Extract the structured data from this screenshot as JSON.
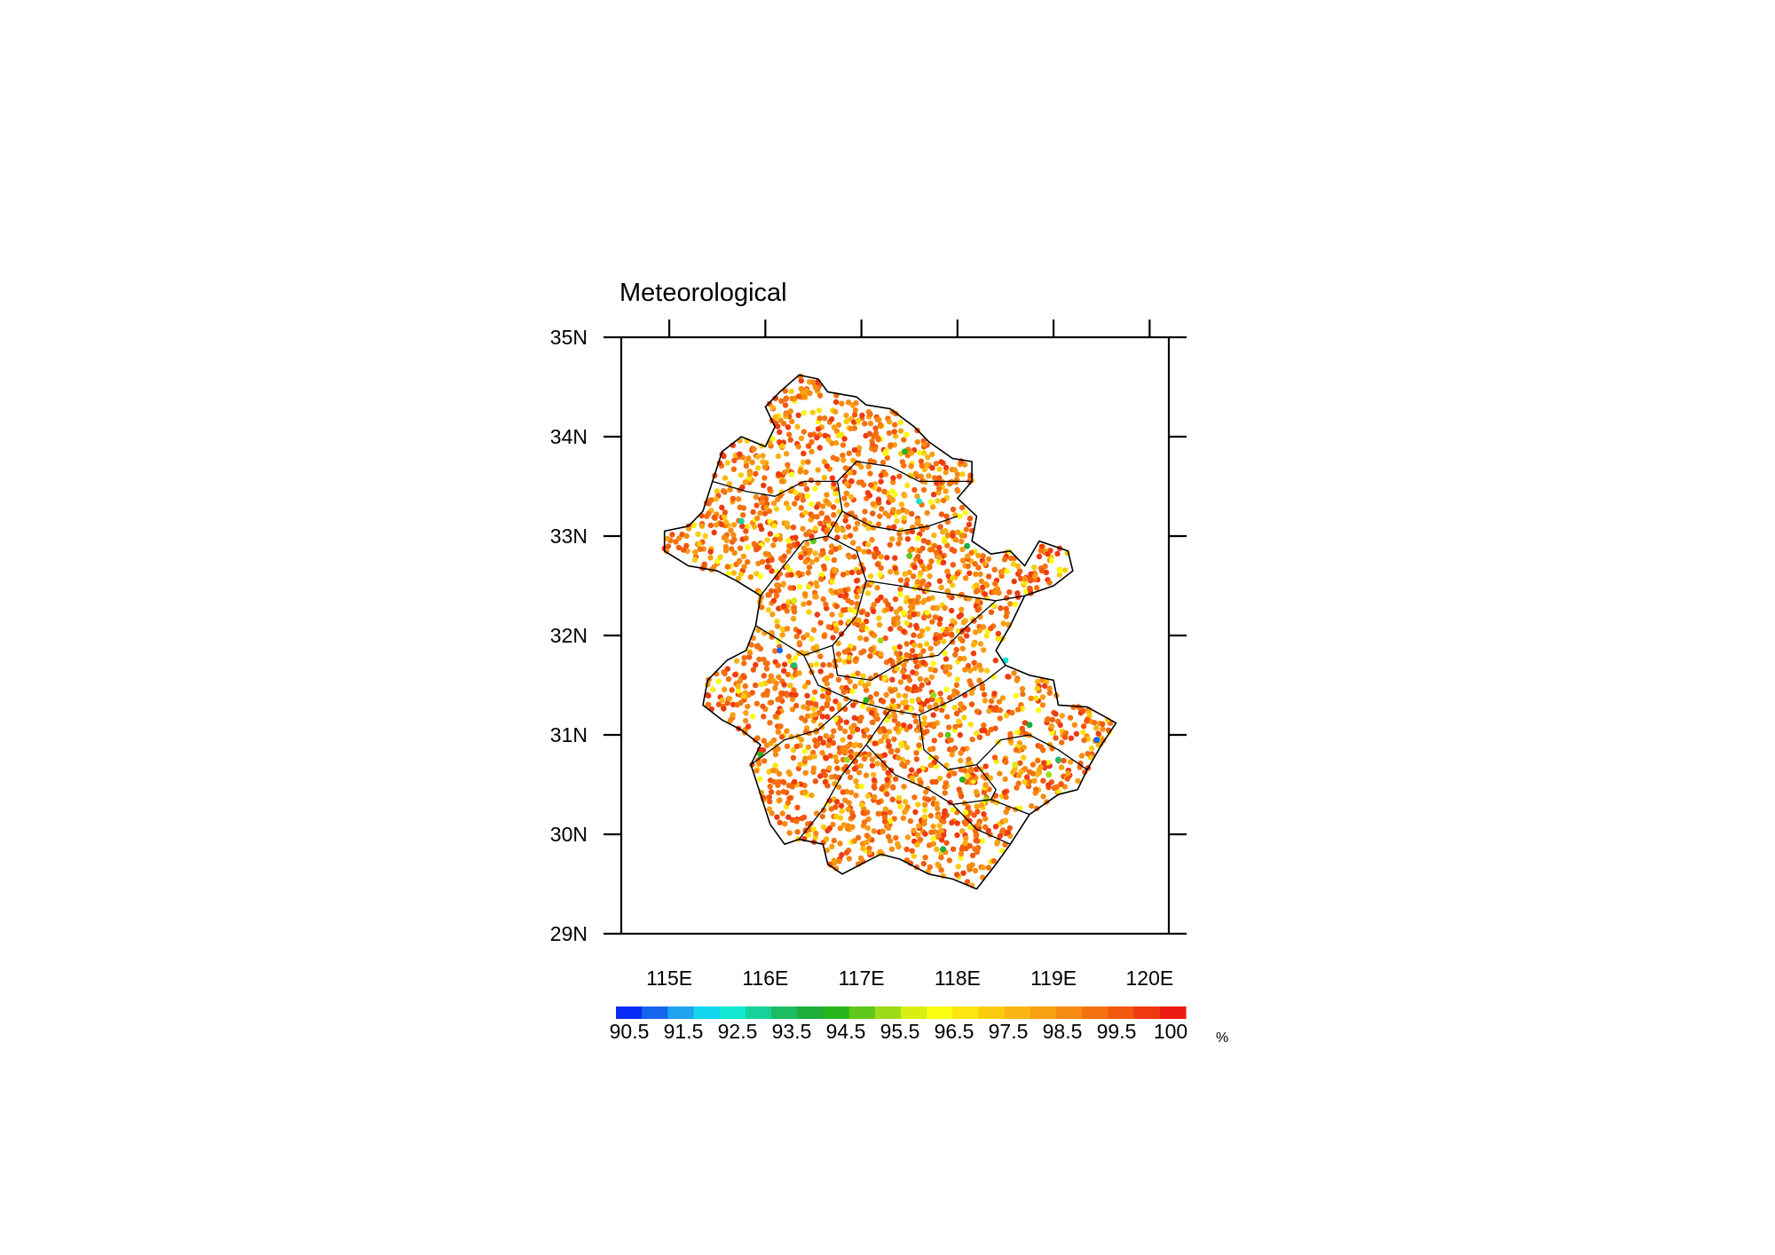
{
  "map": {
    "title": "Meteorological",
    "extent": {
      "lon": [
        114.5,
        120.2
      ],
      "lat": [
        29,
        35
      ]
    },
    "lon_ticks": [
      115,
      116,
      117,
      118,
      119,
      120
    ],
    "lon_labels": [
      "115E",
      "116E",
      "117E",
      "118E",
      "119E",
      "120E"
    ],
    "lat_ticks": [
      29,
      30,
      31,
      32,
      33,
      34,
      35
    ],
    "lat_labels": [
      "29N",
      "30N",
      "31N",
      "32N",
      "33N",
      "34N",
      "35N"
    ],
    "region_outline": [
      [
        116.15,
        34.45
      ],
      [
        116.35,
        34.62
      ],
      [
        116.55,
        34.58
      ],
      [
        116.65,
        34.45
      ],
      [
        116.95,
        34.4
      ],
      [
        117.05,
        34.32
      ],
      [
        117.3,
        34.28
      ],
      [
        117.55,
        34.1
      ],
      [
        117.7,
        33.95
      ],
      [
        117.95,
        33.78
      ],
      [
        118.15,
        33.75
      ],
      [
        118.15,
        33.55
      ],
      [
        118.0,
        33.38
      ],
      [
        118.2,
        33.2
      ],
      [
        118.15,
        32.95
      ],
      [
        118.35,
        32.82
      ],
      [
        118.55,
        32.85
      ],
      [
        118.7,
        32.7
      ],
      [
        118.85,
        32.95
      ],
      [
        119.15,
        32.85
      ],
      [
        119.2,
        32.65
      ],
      [
        119.0,
        32.5
      ],
      [
        118.7,
        32.4
      ],
      [
        118.55,
        32.1
      ],
      [
        118.4,
        31.85
      ],
      [
        118.5,
        31.7
      ],
      [
        118.75,
        31.6
      ],
      [
        119.0,
        31.55
      ],
      [
        119.05,
        31.3
      ],
      [
        119.35,
        31.28
      ],
      [
        119.65,
        31.12
      ],
      [
        119.5,
        30.9
      ],
      [
        119.35,
        30.65
      ],
      [
        119.25,
        30.45
      ],
      [
        119.05,
        30.4
      ],
      [
        118.75,
        30.2
      ],
      [
        118.55,
        29.9
      ],
      [
        118.4,
        29.7
      ],
      [
        118.2,
        29.45
      ],
      [
        117.95,
        29.55
      ],
      [
        117.7,
        29.6
      ],
      [
        117.4,
        29.75
      ],
      [
        117.2,
        29.8
      ],
      [
        117.0,
        29.7
      ],
      [
        116.8,
        29.6
      ],
      [
        116.65,
        29.7
      ],
      [
        116.6,
        29.9
      ],
      [
        116.35,
        29.95
      ],
      [
        116.2,
        29.9
      ],
      [
        116.05,
        30.1
      ],
      [
        115.95,
        30.4
      ],
      [
        115.85,
        30.7
      ],
      [
        115.95,
        30.9
      ],
      [
        115.75,
        31.05
      ],
      [
        115.55,
        31.15
      ],
      [
        115.35,
        31.3
      ],
      [
        115.4,
        31.55
      ],
      [
        115.6,
        31.75
      ],
      [
        115.8,
        31.85
      ],
      [
        115.9,
        32.1
      ],
      [
        115.95,
        32.4
      ],
      [
        115.7,
        32.55
      ],
      [
        115.5,
        32.65
      ],
      [
        115.2,
        32.7
      ],
      [
        114.95,
        32.85
      ],
      [
        114.95,
        33.05
      ],
      [
        115.2,
        33.1
      ],
      [
        115.35,
        33.25
      ],
      [
        115.45,
        33.55
      ],
      [
        115.55,
        33.85
      ],
      [
        115.75,
        34.0
      ],
      [
        116.0,
        33.9
      ],
      [
        116.1,
        34.1
      ],
      [
        116.0,
        34.3
      ]
    ],
    "inner_borders": [
      [
        [
          115.45,
          33.55
        ],
        [
          115.8,
          33.45
        ],
        [
          116.1,
          33.4
        ],
        [
          116.4,
          33.55
        ],
        [
          116.75,
          33.55
        ],
        [
          116.95,
          33.75
        ],
        [
          117.3,
          33.7
        ],
        [
          117.6,
          33.55
        ],
        [
          117.95,
          33.55
        ],
        [
          118.15,
          33.55
        ]
      ],
      [
        [
          116.75,
          33.55
        ],
        [
          116.8,
          33.25
        ],
        [
          116.65,
          33.0
        ],
        [
          116.4,
          32.95
        ],
        [
          116.15,
          32.65
        ],
        [
          115.95,
          32.4
        ]
      ],
      [
        [
          116.8,
          33.25
        ],
        [
          117.1,
          33.1
        ],
        [
          117.4,
          33.05
        ],
        [
          117.7,
          33.1
        ],
        [
          118.0,
          33.2
        ]
      ],
      [
        [
          116.65,
          33.0
        ],
        [
          116.95,
          32.85
        ],
        [
          117.05,
          32.55
        ],
        [
          117.4,
          32.5
        ],
        [
          117.7,
          32.45
        ],
        [
          118.05,
          32.4
        ],
        [
          118.4,
          32.35
        ],
        [
          118.7,
          32.4
        ]
      ],
      [
        [
          117.05,
          32.55
        ],
        [
          116.95,
          32.2
        ],
        [
          116.7,
          31.9
        ],
        [
          116.4,
          31.8
        ],
        [
          115.9,
          32.1
        ]
      ],
      [
        [
          116.4,
          31.8
        ],
        [
          116.55,
          31.5
        ],
        [
          116.9,
          31.35
        ],
        [
          117.3,
          31.25
        ],
        [
          117.6,
          31.2
        ],
        [
          117.95,
          31.35
        ],
        [
          118.3,
          31.55
        ],
        [
          118.5,
          31.7
        ]
      ],
      [
        [
          116.7,
          31.9
        ],
        [
          116.75,
          31.6
        ],
        [
          117.1,
          31.55
        ],
        [
          117.45,
          31.75
        ],
        [
          117.8,
          31.8
        ],
        [
          118.05,
          32.05
        ],
        [
          118.4,
          32.35
        ]
      ],
      [
        [
          115.85,
          30.7
        ],
        [
          116.2,
          30.95
        ],
        [
          116.55,
          31.05
        ],
        [
          116.9,
          31.35
        ]
      ],
      [
        [
          117.3,
          31.25
        ],
        [
          117.05,
          30.9
        ],
        [
          116.8,
          30.6
        ],
        [
          116.6,
          30.25
        ],
        [
          116.35,
          29.95
        ]
      ],
      [
        [
          117.6,
          31.2
        ],
        [
          117.65,
          30.85
        ],
        [
          117.9,
          30.65
        ],
        [
          118.2,
          30.7
        ],
        [
          118.45,
          30.95
        ],
        [
          118.75,
          31.0
        ],
        [
          119.05,
          30.85
        ],
        [
          119.35,
          30.65
        ]
      ],
      [
        [
          117.05,
          30.9
        ],
        [
          117.35,
          30.6
        ],
        [
          117.7,
          30.45
        ],
        [
          117.95,
          30.3
        ],
        [
          118.2,
          30.05
        ],
        [
          118.55,
          29.9
        ]
      ],
      [
        [
          117.95,
          30.3
        ],
        [
          118.35,
          30.35
        ],
        [
          118.75,
          30.2
        ]
      ],
      [
        [
          118.2,
          30.7
        ],
        [
          118.4,
          30.45
        ],
        [
          118.35,
          30.35
        ]
      ]
    ],
    "outlier_stations": [
      [
        116.15,
        31.85,
        90.6
      ],
      [
        116.3,
        31.7,
        93.1
      ],
      [
        117.05,
        31.35,
        94.2
      ],
      [
        118.75,
        31.1,
        93.6
      ],
      [
        119.45,
        30.95,
        90.9
      ],
      [
        118.5,
        31.75,
        92.4
      ],
      [
        117.6,
        33.35,
        92.2
      ],
      [
        117.45,
        33.85,
        94.1
      ],
      [
        115.75,
        33.15,
        92.6
      ],
      [
        118.05,
        30.55,
        94.0
      ],
      [
        117.85,
        29.85,
        93.7
      ],
      [
        118.3,
        30.35,
        95.2
      ],
      [
        116.5,
        32.95,
        94.6
      ],
      [
        117.5,
        32.8,
        94.9
      ],
      [
        118.1,
        32.9,
        93.9
      ],
      [
        116.85,
        30.75,
        95.1
      ],
      [
        117.9,
        31.0,
        94.8
      ],
      [
        118.6,
        30.7,
        95.6
      ],
      [
        115.95,
        30.8,
        94.3
      ],
      [
        117.2,
        31.95,
        95.3
      ],
      [
        119.05,
        30.75,
        93.2
      ],
      [
        118.95,
        30.6,
        95.0
      ],
      [
        117.75,
        31.4,
        95.4
      ],
      [
        116.3,
        32.35,
        95.9
      ]
    ],
    "palette": {
      "colors": [
        "#0a2bf5",
        "#1565ef",
        "#1ea3f0",
        "#12d6f0",
        "#12e8d2",
        "#17d19b",
        "#1bbd62",
        "#1ead3a",
        "#26b61c",
        "#60c81a",
        "#9ddb18",
        "#d8ee12",
        "#fcfc10",
        "#fce510",
        "#fbcc0e",
        "#fbb512",
        "#f99f12",
        "#f78a12",
        "#f5710f",
        "#f2580e",
        "#ef3a10",
        "#ed1b12"
      ],
      "boundaries": [
        90.5,
        91,
        91.5,
        92,
        92.5,
        93,
        93.5,
        94,
        94.5,
        95,
        95.5,
        96,
        96.5,
        97,
        97.5,
        98,
        98.5,
        99,
        99.5,
        99.75,
        100
      ]
    }
  },
  "colorbar": {
    "labels": [
      "90.5",
      "91.5",
      "92.5",
      "93.5",
      "94.5",
      "95.5",
      "96.5",
      "97.5",
      "98.5",
      "99.5",
      "100"
    ],
    "unit": "%"
  }
}
